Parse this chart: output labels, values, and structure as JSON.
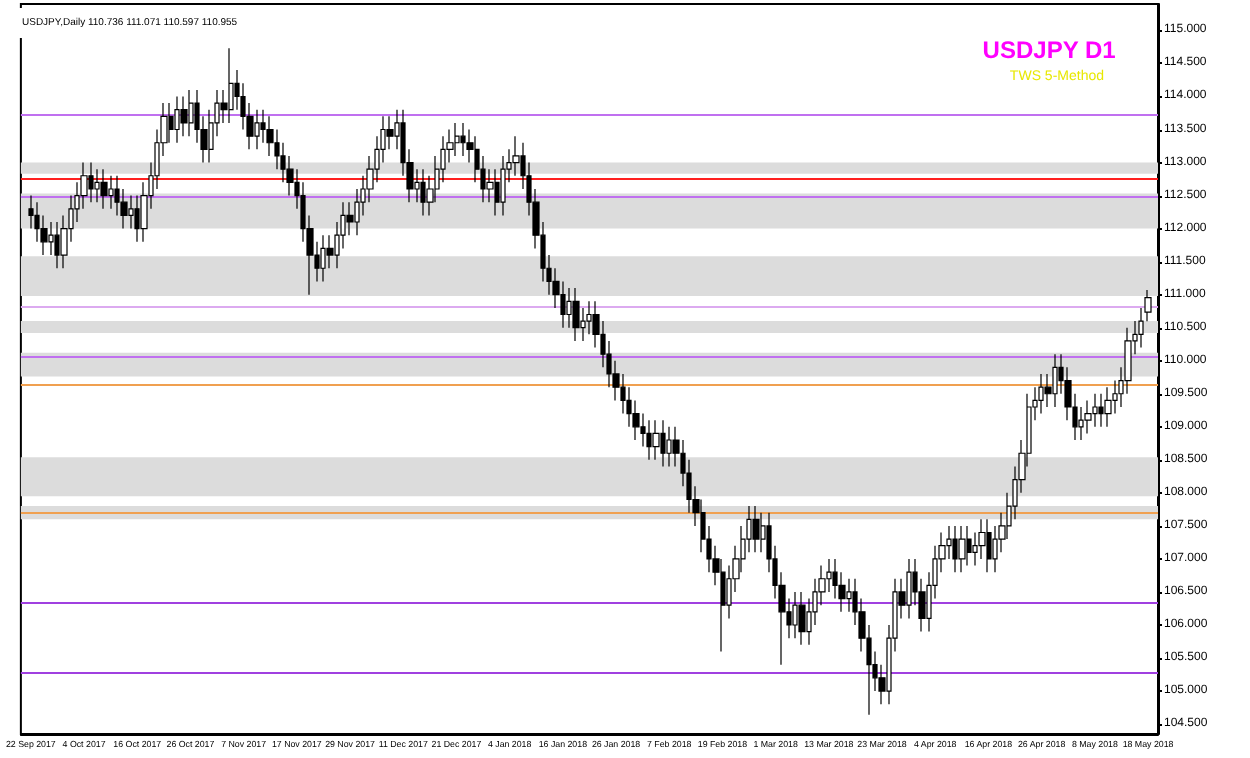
{
  "chart_data": {
    "type": "candlestick",
    "title": "USDJPY D1",
    "subtitle": "TWS 5-Method",
    "annotations": [
      "USDJPY,Daily 110.736 111.071 110.597 110.955"
    ],
    "categories": [
      "22 Sep 2017",
      null,
      null,
      null,
      null,
      null,
      null,
      null,
      "4 Oct 2017",
      null,
      null,
      null,
      null,
      null,
      null,
      null,
      "16 Oct 2017",
      null,
      null,
      null,
      null,
      null,
      null,
      null,
      "26 Oct 2017",
      null,
      null,
      null,
      null,
      null,
      null,
      null,
      "7 Nov 2017",
      null,
      null,
      null,
      null,
      null,
      null,
      null,
      "17 Nov 2017",
      null,
      null,
      null,
      null,
      null,
      null,
      null,
      "29 Nov 2017",
      null,
      null,
      null,
      null,
      null,
      null,
      null,
      "11 Dec 2017",
      null,
      null,
      null,
      null,
      null,
      null,
      null,
      "21 Dec 2017",
      null,
      null,
      null,
      null,
      null,
      null,
      null,
      "4 Jan 2018",
      null,
      null,
      null,
      null,
      null,
      null,
      null,
      "16 Jan 2018",
      null,
      null,
      null,
      null,
      null,
      null,
      null,
      "26 Jan 2018",
      null,
      null,
      null,
      null,
      null,
      null,
      null,
      "7 Feb 2018",
      null,
      null,
      null,
      null,
      null,
      null,
      null,
      "19 Feb 2018",
      null,
      null,
      null,
      null,
      null,
      null,
      null,
      "1 Mar 2018",
      null,
      null,
      null,
      null,
      null,
      null,
      null,
      "13 Mar 2018",
      null,
      null,
      null,
      null,
      null,
      null,
      null,
      "23 Mar 2018",
      null,
      null,
      null,
      null,
      null,
      null,
      null,
      "4 Apr 2018",
      null,
      null,
      null,
      null,
      null,
      null,
      null,
      "16 Apr 2018",
      null,
      null,
      null,
      null,
      null,
      null,
      null,
      "26 Apr 2018",
      null,
      null,
      null,
      null,
      null,
      null,
      null,
      "8 May 2018",
      null,
      null,
      null,
      null,
      null,
      null,
      null,
      "18 May 2018"
    ],
    "ohlc": [
      [
        112.3,
        112.5,
        112.0,
        112.2
      ],
      [
        112.2,
        112.4,
        111.8,
        112.0
      ],
      [
        112.0,
        112.2,
        111.6,
        111.8
      ],
      [
        111.8,
        112.1,
        111.6,
        111.9
      ],
      [
        111.9,
        112.1,
        111.4,
        111.6
      ],
      [
        111.6,
        112.2,
        111.4,
        112.0
      ],
      [
        112.0,
        112.5,
        111.8,
        112.3
      ],
      [
        112.3,
        112.7,
        112.1,
        112.5
      ],
      [
        112.5,
        113.0,
        112.3,
        112.8
      ],
      [
        112.8,
        113.0,
        112.4,
        112.6
      ],
      [
        112.6,
        112.9,
        112.4,
        112.7
      ],
      [
        112.7,
        112.9,
        112.3,
        112.5
      ],
      [
        112.5,
        112.8,
        112.3,
        112.6
      ],
      [
        112.6,
        112.8,
        112.2,
        112.4
      ],
      [
        112.4,
        112.6,
        112.0,
        112.2
      ],
      [
        112.2,
        112.5,
        112.0,
        112.3
      ],
      [
        112.3,
        112.5,
        111.8,
        112.0
      ],
      [
        112.0,
        112.7,
        111.8,
        112.5
      ],
      [
        112.5,
        113.0,
        112.3,
        112.8
      ],
      [
        112.8,
        113.5,
        112.6,
        113.3
      ],
      [
        113.3,
        113.9,
        113.1,
        113.7
      ],
      [
        113.7,
        113.9,
        113.3,
        113.5
      ],
      [
        113.5,
        114.0,
        113.3,
        113.8
      ],
      [
        113.8,
        114.0,
        113.4,
        113.6
      ],
      [
        113.6,
        114.1,
        113.4,
        113.9
      ],
      [
        113.9,
        114.1,
        113.3,
        113.5
      ],
      [
        113.5,
        113.7,
        113.0,
        113.2
      ],
      [
        113.2,
        113.8,
        113.0,
        113.6
      ],
      [
        113.6,
        114.1,
        113.4,
        113.9
      ],
      [
        113.9,
        114.1,
        113.6,
        113.8
      ],
      [
        113.8,
        114.73,
        113.6,
        114.2
      ],
      [
        114.2,
        114.4,
        113.8,
        114.0
      ],
      [
        114.0,
        114.2,
        113.5,
        113.7
      ],
      [
        113.7,
        113.9,
        113.2,
        113.4
      ],
      [
        113.4,
        113.8,
        113.2,
        113.6
      ],
      [
        113.6,
        113.8,
        113.3,
        113.5
      ],
      [
        113.5,
        113.7,
        113.1,
        113.3
      ],
      [
        113.3,
        113.5,
        112.9,
        113.1
      ],
      [
        113.1,
        113.3,
        112.7,
        112.9
      ],
      [
        112.9,
        113.1,
        112.5,
        112.7
      ],
      [
        112.7,
        112.9,
        112.3,
        112.5
      ],
      [
        112.5,
        112.7,
        111.8,
        112.0
      ],
      [
        112.0,
        112.2,
        111.0,
        111.6
      ],
      [
        111.6,
        111.8,
        111.2,
        111.4
      ],
      [
        111.4,
        111.9,
        111.2,
        111.7
      ],
      [
        111.7,
        111.9,
        111.4,
        111.6
      ],
      [
        111.6,
        112.1,
        111.4,
        111.9
      ],
      [
        111.9,
        112.4,
        111.7,
        112.2
      ],
      [
        112.2,
        112.4,
        111.9,
        112.1
      ],
      [
        112.1,
        112.6,
        111.9,
        112.4
      ],
      [
        112.4,
        112.8,
        112.2,
        112.6
      ],
      [
        112.6,
        113.1,
        112.4,
        112.9
      ],
      [
        112.9,
        113.4,
        112.7,
        113.2
      ],
      [
        113.2,
        113.7,
        113.0,
        113.5
      ],
      [
        113.5,
        113.7,
        113.2,
        113.4
      ],
      [
        113.4,
        113.8,
        113.2,
        113.6
      ],
      [
        113.6,
        113.8,
        112.8,
        113.0
      ],
      [
        113.0,
        113.2,
        112.4,
        112.6
      ],
      [
        112.6,
        112.9,
        112.4,
        112.7
      ],
      [
        112.7,
        112.9,
        112.2,
        112.4
      ],
      [
        112.4,
        112.8,
        112.2,
        112.6
      ],
      [
        112.6,
        113.1,
        112.4,
        112.9
      ],
      [
        112.9,
        113.4,
        112.7,
        113.2
      ],
      [
        113.2,
        113.5,
        113.0,
        113.3
      ],
      [
        113.3,
        113.6,
        113.1,
        113.4
      ],
      [
        113.4,
        113.6,
        113.1,
        113.3
      ],
      [
        113.3,
        113.5,
        113.0,
        113.2
      ],
      [
        113.2,
        113.4,
        112.7,
        112.9
      ],
      [
        112.9,
        113.1,
        112.4,
        112.6
      ],
      [
        112.6,
        112.9,
        112.4,
        112.7
      ],
      [
        112.7,
        112.9,
        112.2,
        112.4
      ],
      [
        112.4,
        113.1,
        112.2,
        112.9
      ],
      [
        112.9,
        113.2,
        112.7,
        113.0
      ],
      [
        113.0,
        113.4,
        112.8,
        113.1
      ],
      [
        113.1,
        113.3,
        112.6,
        112.8
      ],
      [
        112.8,
        113.0,
        112.2,
        112.4
      ],
      [
        112.4,
        112.6,
        111.7,
        111.9
      ],
      [
        111.9,
        112.1,
        111.2,
        111.4
      ],
      [
        111.4,
        111.6,
        111.0,
        111.2
      ],
      [
        111.2,
        111.4,
        110.8,
        111.0
      ],
      [
        111.0,
        111.2,
        110.5,
        110.7
      ],
      [
        110.7,
        111.1,
        110.5,
        110.9
      ],
      [
        110.9,
        111.1,
        110.3,
        110.5
      ],
      [
        110.5,
        110.8,
        110.3,
        110.6
      ],
      [
        110.6,
        110.9,
        110.4,
        110.7
      ],
      [
        110.7,
        110.9,
        110.2,
        110.4
      ],
      [
        110.4,
        110.6,
        109.9,
        110.1
      ],
      [
        110.1,
        110.3,
        109.6,
        109.8
      ],
      [
        109.8,
        110.0,
        109.4,
        109.6
      ],
      [
        109.6,
        109.8,
        109.2,
        109.4
      ],
      [
        109.4,
        109.6,
        109.0,
        109.2
      ],
      [
        109.2,
        109.4,
        108.8,
        109.0
      ],
      [
        109.0,
        109.2,
        108.7,
        108.9
      ],
      [
        108.9,
        109.1,
        108.5,
        108.7
      ],
      [
        108.7,
        109.1,
        108.5,
        108.9
      ],
      [
        108.9,
        109.1,
        108.4,
        108.6
      ],
      [
        108.6,
        109.0,
        108.4,
        108.8
      ],
      [
        108.8,
        109.0,
        108.4,
        108.6
      ],
      [
        108.6,
        108.8,
        108.1,
        108.3
      ],
      [
        108.3,
        108.5,
        107.7,
        107.9
      ],
      [
        107.9,
        108.1,
        107.5,
        107.7
      ],
      [
        107.7,
        107.9,
        107.1,
        107.3
      ],
      [
        107.3,
        107.5,
        106.8,
        107.0
      ],
      [
        107.0,
        107.2,
        106.6,
        106.8
      ],
      [
        106.8,
        107.0,
        105.6,
        106.3
      ],
      [
        106.3,
        106.9,
        106.1,
        106.7
      ],
      [
        106.7,
        107.2,
        106.5,
        107.0
      ],
      [
        107.0,
        107.5,
        106.8,
        107.3
      ],
      [
        107.3,
        107.8,
        107.1,
        107.6
      ],
      [
        107.6,
        107.8,
        107.1,
        107.3
      ],
      [
        107.3,
        107.7,
        107.1,
        107.5
      ],
      [
        107.5,
        107.7,
        106.8,
        107.0
      ],
      [
        107.0,
        107.2,
        106.4,
        106.6
      ],
      [
        106.6,
        106.8,
        105.4,
        106.2
      ],
      [
        106.2,
        106.4,
        105.8,
        106.0
      ],
      [
        106.0,
        106.5,
        105.8,
        106.3
      ],
      [
        106.3,
        106.5,
        105.7,
        105.9
      ],
      [
        105.9,
        106.4,
        105.7,
        106.2
      ],
      [
        106.2,
        106.7,
        106.0,
        106.5
      ],
      [
        106.5,
        106.9,
        106.3,
        106.7
      ],
      [
        106.7,
        107.0,
        106.5,
        106.8
      ],
      [
        106.8,
        107.0,
        106.4,
        106.6
      ],
      [
        106.6,
        106.8,
        106.2,
        106.4
      ],
      [
        106.4,
        106.7,
        106.2,
        106.5
      ],
      [
        106.5,
        106.7,
        106.0,
        106.2
      ],
      [
        106.2,
        106.4,
        105.6,
        105.8
      ],
      [
        105.8,
        106.0,
        104.64,
        105.4
      ],
      [
        105.4,
        105.6,
        105.0,
        105.2
      ],
      [
        105.2,
        105.4,
        104.8,
        105.0
      ],
      [
        105.0,
        106.0,
        104.8,
        105.8
      ],
      [
        105.8,
        106.7,
        105.6,
        106.5
      ],
      [
        106.5,
        106.7,
        106.1,
        106.3
      ],
      [
        106.3,
        107.0,
        106.1,
        106.8
      ],
      [
        106.8,
        107.0,
        106.3,
        106.5
      ],
      [
        106.5,
        106.7,
        105.9,
        106.1
      ],
      [
        106.1,
        106.8,
        105.9,
        106.6
      ],
      [
        106.6,
        107.2,
        106.4,
        107.0
      ],
      [
        107.0,
        107.4,
        106.8,
        107.2
      ],
      [
        107.2,
        107.5,
        107.0,
        107.3
      ],
      [
        107.3,
        107.5,
        106.8,
        107.0
      ],
      [
        107.0,
        107.5,
        106.8,
        107.3
      ],
      [
        107.3,
        107.5,
        106.9,
        107.1
      ],
      [
        107.1,
        107.4,
        106.9,
        107.2
      ],
      [
        107.2,
        107.6,
        107.0,
        107.4
      ],
      [
        107.4,
        107.6,
        106.8,
        107.0
      ],
      [
        107.0,
        107.5,
        106.8,
        107.3
      ],
      [
        107.3,
        107.7,
        107.1,
        107.5
      ],
      [
        107.5,
        108.0,
        107.3,
        107.8
      ],
      [
        107.8,
        108.4,
        107.6,
        108.2
      ],
      [
        108.2,
        108.8,
        108.0,
        108.6
      ],
      [
        108.6,
        109.5,
        108.4,
        109.3
      ],
      [
        109.3,
        109.6,
        109.1,
        109.4
      ],
      [
        109.4,
        109.8,
        109.2,
        109.6
      ],
      [
        109.6,
        109.8,
        109.3,
        109.5
      ],
      [
        109.5,
        110.1,
        109.3,
        109.9
      ],
      [
        109.9,
        110.1,
        109.5,
        109.7
      ],
      [
        109.7,
        109.9,
        109.1,
        109.3
      ],
      [
        109.3,
        109.5,
        108.8,
        109.0
      ],
      [
        109.0,
        109.3,
        108.8,
        109.1
      ],
      [
        109.1,
        109.4,
        108.9,
        109.2
      ],
      [
        109.2,
        109.5,
        109.0,
        109.3
      ],
      [
        109.3,
        109.5,
        109.0,
        109.2
      ],
      [
        109.2,
        109.6,
        109.0,
        109.4
      ],
      [
        109.4,
        109.7,
        109.2,
        109.5
      ],
      [
        109.5,
        109.9,
        109.3,
        109.7
      ],
      [
        109.7,
        110.5,
        109.5,
        110.3
      ],
      [
        110.3,
        110.6,
        110.1,
        110.4
      ],
      [
        110.4,
        110.8,
        110.2,
        110.6
      ],
      [
        110.736,
        111.071,
        110.597,
        110.955
      ]
    ],
    "ylim": [
      104.35,
      115.4
    ],
    "yticks": [
      {
        "value": 104.5,
        "label": "104.500"
      },
      {
        "value": 105,
        "label": "105.000"
      },
      {
        "value": 105.5,
        "label": "105.500"
      },
      {
        "value": 106,
        "label": "106.000"
      },
      {
        "value": 106.5,
        "label": "106.500"
      },
      {
        "value": 107,
        "label": "107.000"
      },
      {
        "value": 107.5,
        "label": "107.500"
      },
      {
        "value": 108,
        "label": "108.000"
      },
      {
        "value": 108.5,
        "label": "108.500"
      },
      {
        "value": 109,
        "label": "109.000"
      },
      {
        "value": 109.5,
        "label": "109.500"
      },
      {
        "value": 110,
        "label": "110.000"
      },
      {
        "value": 110.5,
        "label": "110.500"
      },
      {
        "value": 111,
        "label": "111.000"
      },
      {
        "value": 111.5,
        "label": "111.500"
      },
      {
        "value": 112,
        "label": "112.000"
      },
      {
        "value": 112.5,
        "label": "112.500"
      },
      {
        "value": 113,
        "label": "113.000"
      },
      {
        "value": 113.5,
        "label": "113.500"
      },
      {
        "value": 114,
        "label": "114.000"
      },
      {
        "value": 114.5,
        "label": "114.500"
      },
      {
        "value": 115,
        "label": "115.000"
      }
    ],
    "ref_lines": [
      {
        "axis": "y",
        "value": 113.72,
        "color": "#c070f0"
      },
      {
        "axis": "y",
        "value": 112.77,
        "color": "#ff2020"
      },
      {
        "axis": "y",
        "value": 112.5,
        "color": "#c070f0"
      },
      {
        "axis": "y",
        "value": 110.83,
        "color": "#dcaaf0"
      },
      {
        "axis": "y",
        "value": 110.06,
        "color": "#c070f0"
      },
      {
        "axis": "y",
        "value": 109.64,
        "color": "#f0a050"
      },
      {
        "axis": "y",
        "value": 107.71,
        "color": "#f0a050"
      },
      {
        "axis": "y",
        "value": 106.34,
        "color": "#a040e0"
      },
      {
        "axis": "y",
        "value": 105.27,
        "color": "#a040e0"
      }
    ],
    "bands": [
      {
        "axis": "y",
        "from": 112.83,
        "to": 113.0,
        "color": "#dcdcdc"
      },
      {
        "axis": "y",
        "from": 112.0,
        "to": 112.53,
        "color": "#dcdcdc"
      },
      {
        "axis": "y",
        "from": 110.98,
        "to": 111.58,
        "color": "#dcdcdc"
      },
      {
        "axis": "y",
        "from": 110.42,
        "to": 110.6,
        "color": "#dcdcdc"
      },
      {
        "axis": "y",
        "from": 109.76,
        "to": 110.12,
        "color": "#dcdcdc"
      },
      {
        "axis": "y",
        "from": 107.95,
        "to": 108.54,
        "color": "#dcdcdc"
      },
      {
        "axis": "y",
        "from": 107.6,
        "to": 107.8,
        "color": "#dcdcdc"
      }
    ],
    "grid": false
  }
}
